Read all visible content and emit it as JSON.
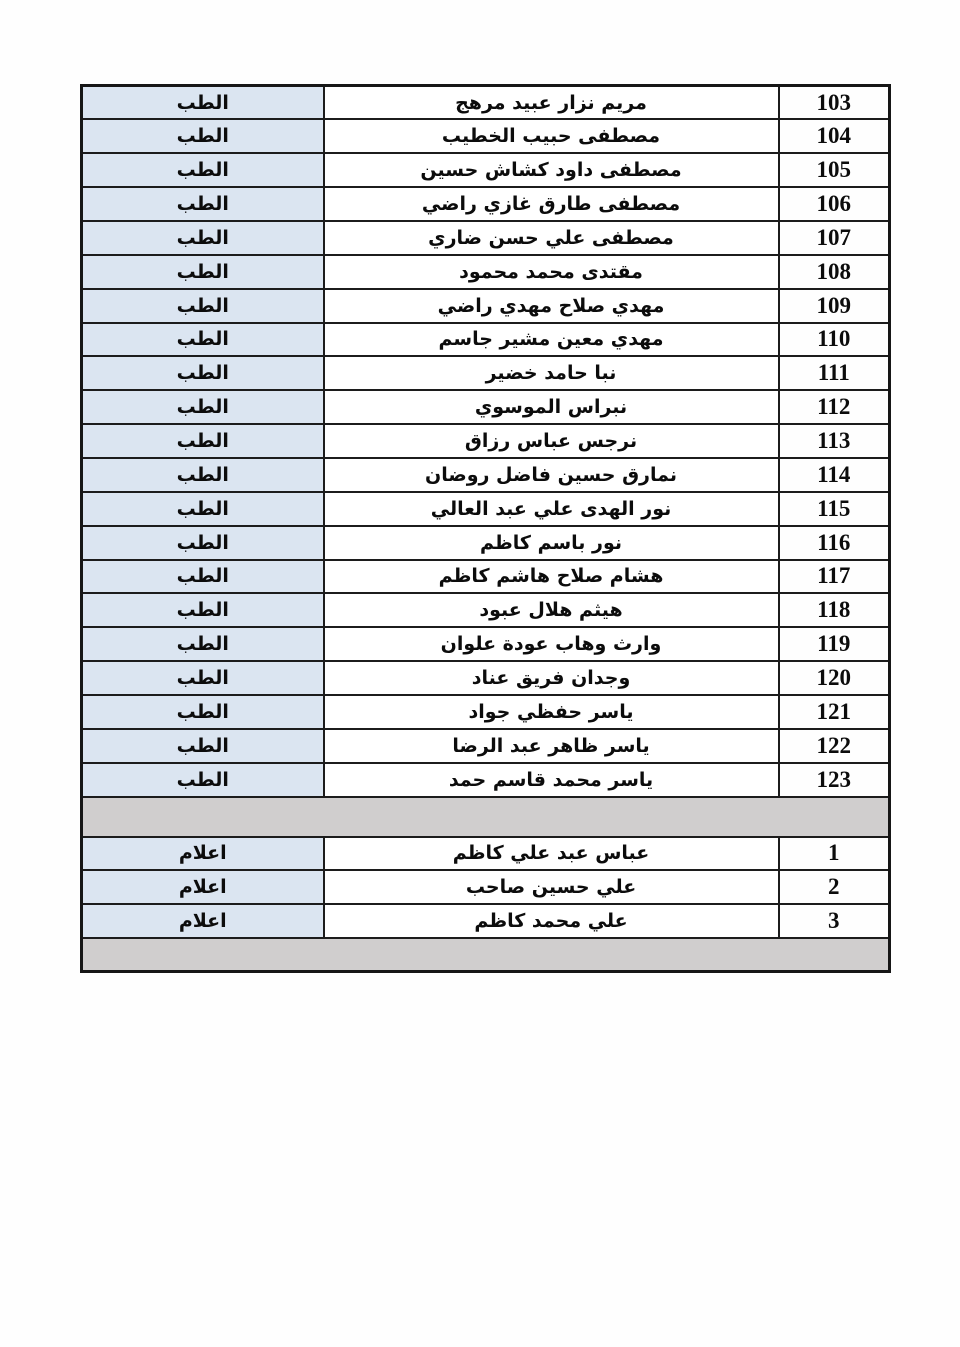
{
  "page": {
    "background": "#ffffff",
    "direction": "rtl"
  },
  "table": {
    "border_color": "#1c1c1c",
    "category_bg": "#dbe5f1",
    "separator_bg": "#d0cece",
    "columns": [
      "number",
      "name",
      "category"
    ],
    "sections": [
      {
        "id": "medicine",
        "category_label": "الطب",
        "rows": [
          {
            "no": "103",
            "name": "مريم نزار عبيد مرهج"
          },
          {
            "no": "104",
            "name": "مصطفى حبيب الخطيب"
          },
          {
            "no": "105",
            "name": "مصطفى داود كشاش حسين"
          },
          {
            "no": "106",
            "name": "مصطفى طارق غازي راضي"
          },
          {
            "no": "107",
            "name": "مصطفى علي حسن ضاري"
          },
          {
            "no": "108",
            "name": "مقتدى محمد محمود"
          },
          {
            "no": "109",
            "name": "مهدي صلاح مهدي راضي"
          },
          {
            "no": "110",
            "name": "مهدي معين مشير جاسم"
          },
          {
            "no": "111",
            "name": "نبا حامد خضير"
          },
          {
            "no": "112",
            "name": "نبراس الموسوي"
          },
          {
            "no": "113",
            "name": "نرجس عباس رزاق"
          },
          {
            "no": "114",
            "name": "نمارق حسين فاضل روضان"
          },
          {
            "no": "115",
            "name": "نور الهدى علي عبد العالي"
          },
          {
            "no": "116",
            "name": "نور باسم كاظم"
          },
          {
            "no": "117",
            "name": "هشام صلاح هاشم كاظم"
          },
          {
            "no": "118",
            "name": "هيثم هلال عبود"
          },
          {
            "no": "119",
            "name": "وارث وهاب عودة علوان"
          },
          {
            "no": "120",
            "name": "وجدان فريق عناد"
          },
          {
            "no": "121",
            "name": "ياسر حفظي جواد"
          },
          {
            "no": "122",
            "name": "ياسر ظاهر عبد الرضا"
          },
          {
            "no": "123",
            "name": "ياسر محمد قاسم حمد"
          }
        ]
      },
      {
        "id": "media",
        "category_label": "اعلام",
        "rows": [
          {
            "no": "1",
            "name": "عباس عبد علي كاظم"
          },
          {
            "no": "2",
            "name": "علي حسين صاحب"
          },
          {
            "no": "3",
            "name": "علي محمد كاظم"
          }
        ]
      }
    ]
  }
}
